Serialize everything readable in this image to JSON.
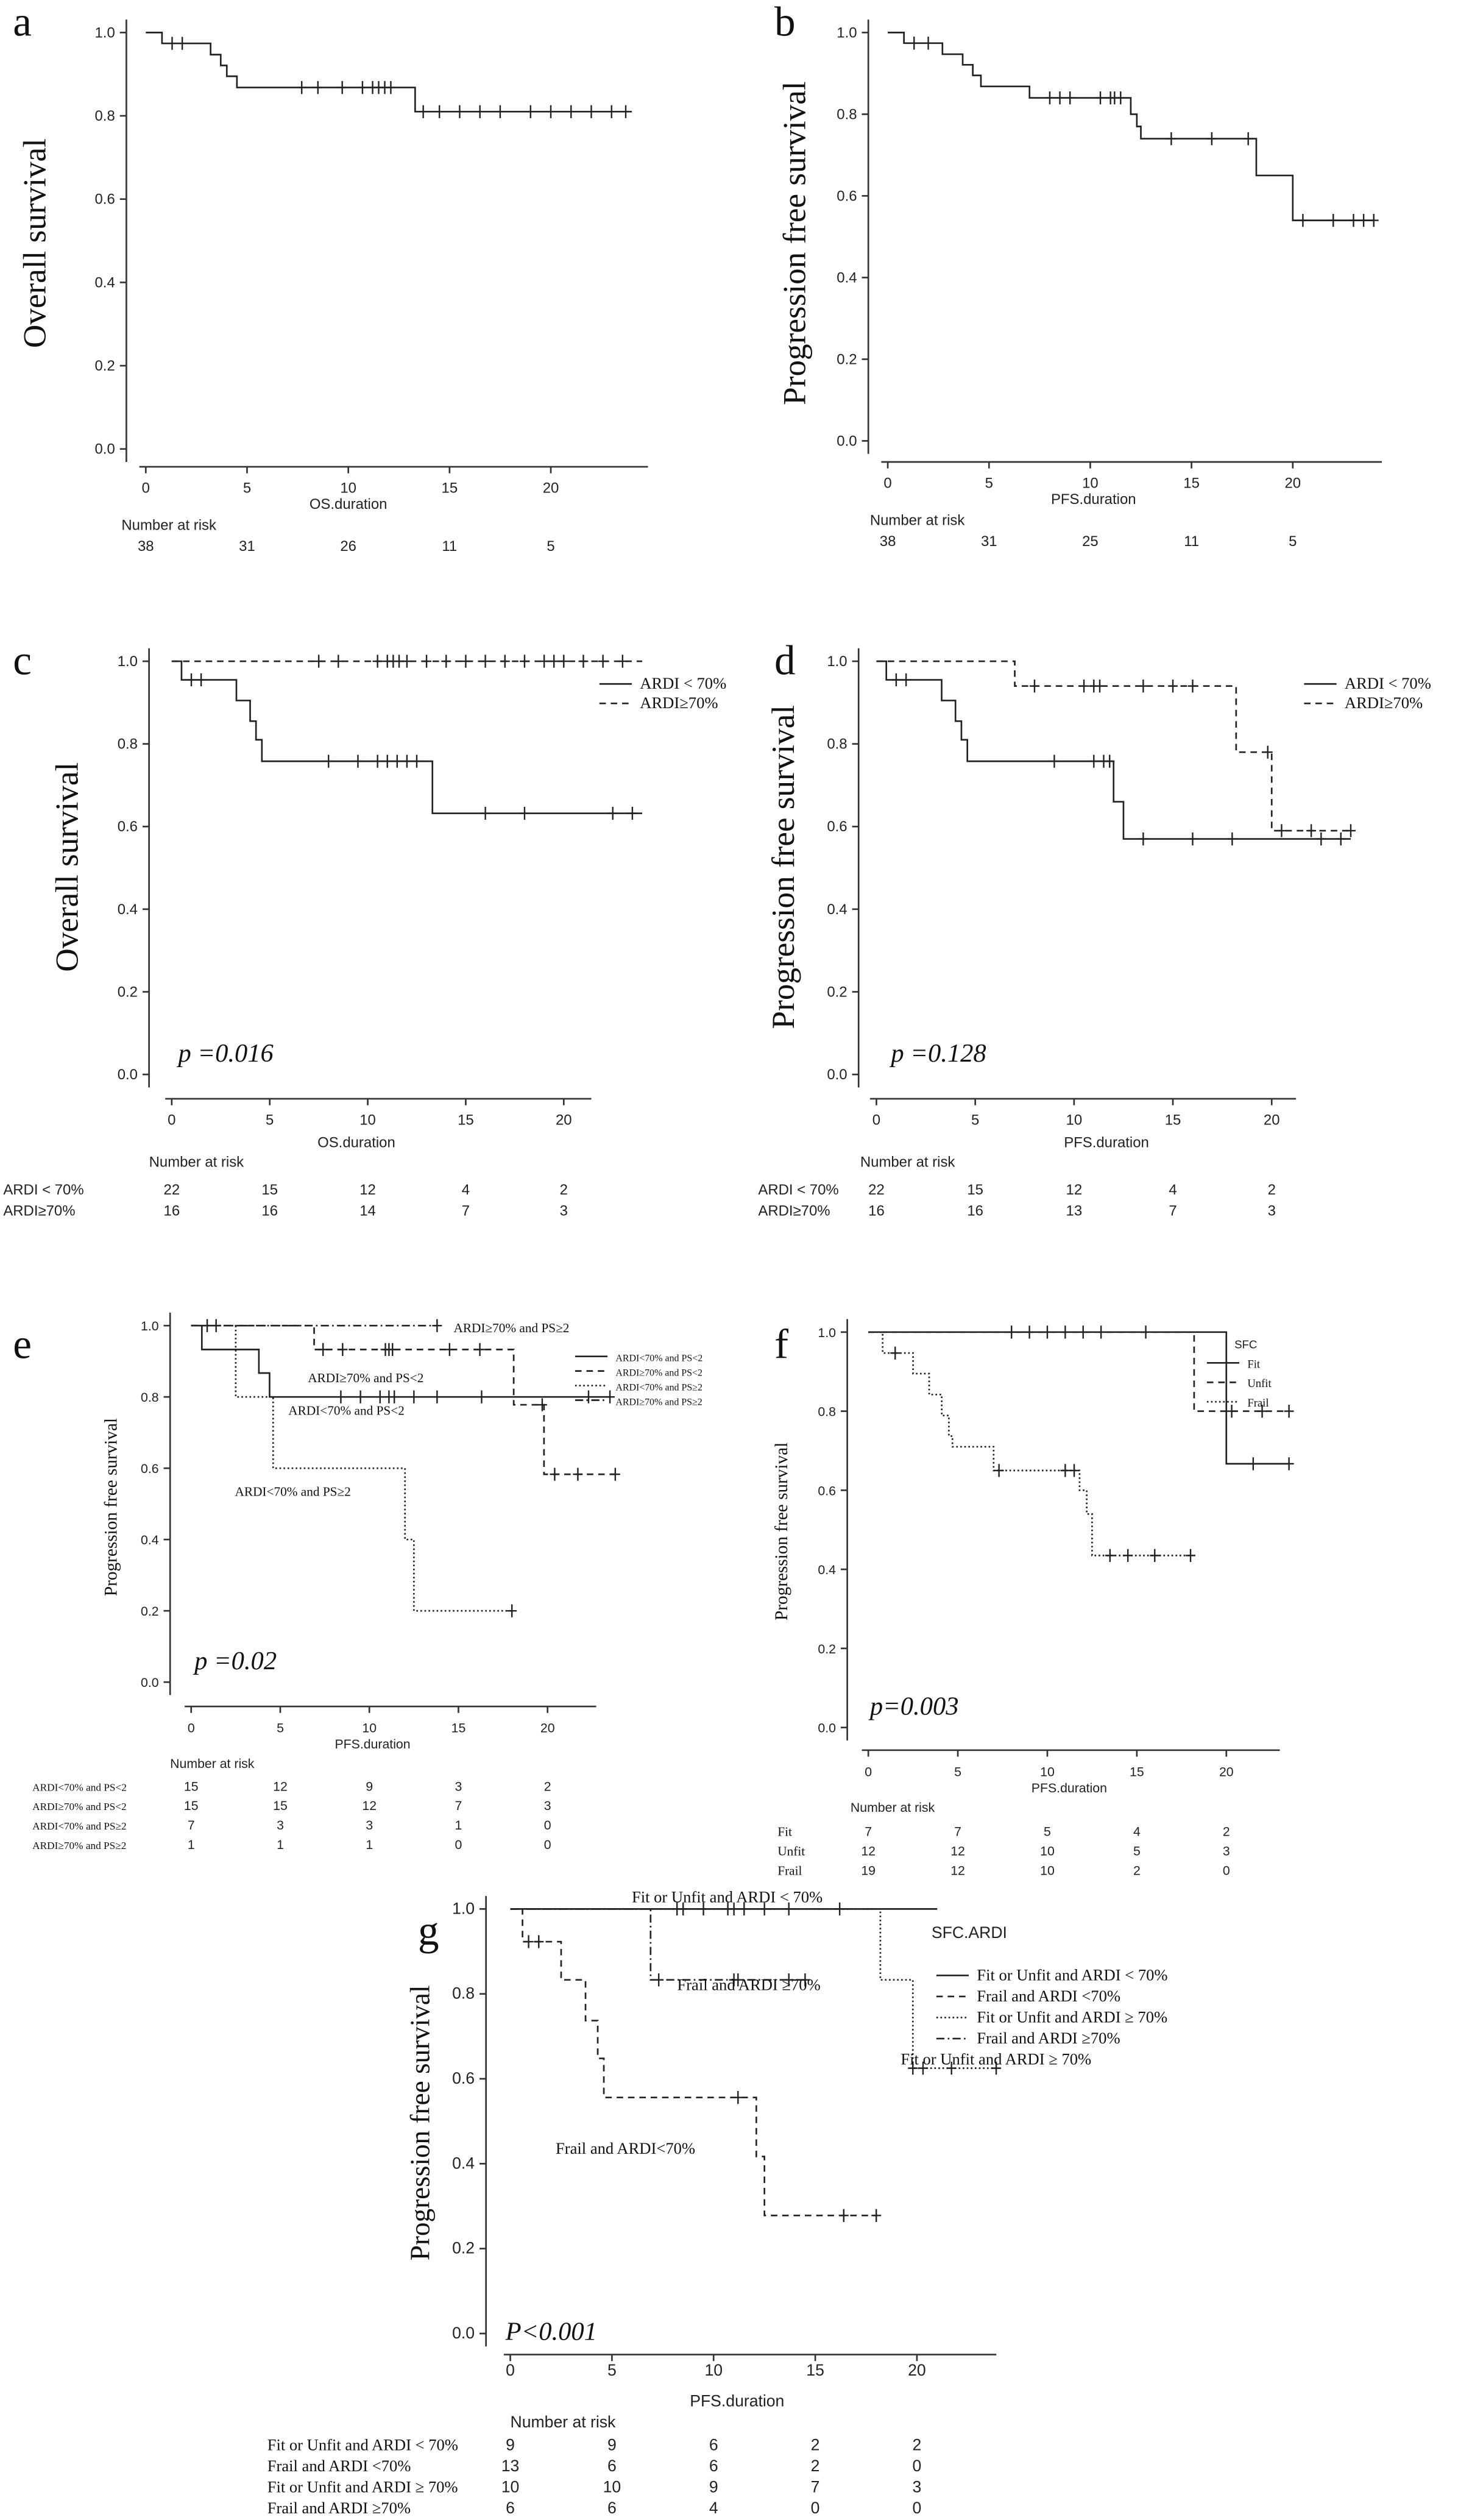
{
  "chart_data": [
    {
      "type": "line",
      "panel_letter": "a",
      "ylabel": "Overall survival",
      "xlabel": "OS.duration",
      "xticks": [
        0,
        5,
        10,
        15,
        20
      ],
      "yticks": [
        "0.0",
        "0.2",
        "0.4",
        "0.6",
        "0.8",
        "1.0"
      ],
      "ylim": [
        0,
        1
      ],
      "p_value": "",
      "legend_title": "",
      "series": [
        {
          "name": "",
          "style": "solid",
          "steps": [
            [
              0,
              1
            ],
            [
              0.8,
              0.974
            ],
            [
              3.2,
              0.947
            ],
            [
              3.7,
              0.921
            ],
            [
              4.0,
              0.895
            ],
            [
              4.5,
              0.868
            ],
            [
              13.3,
              0.81
            ]
          ],
          "end": 24,
          "censors": [
            1.3,
            1.8,
            7.7,
            8.5,
            9.7,
            10.7,
            11.2,
            11.5,
            11.8,
            12.1,
            13.7,
            14.5,
            15.5,
            16.5,
            17.5,
            19,
            20,
            21,
            22,
            23,
            23.7
          ]
        }
      ],
      "annotations": [],
      "risk_table": {
        "title": "Number at risk",
        "rows": [
          {
            "label": "",
            "values": [
              "38",
              "31",
              "26",
              "11",
              "5"
            ]
          }
        ]
      }
    },
    {
      "type": "line",
      "panel_letter": "b",
      "ylabel": "Progression free survival",
      "xlabel": "PFS.duration",
      "xticks": [
        0,
        5,
        10,
        15,
        20
      ],
      "yticks": [
        "0.0",
        "0.2",
        "0.4",
        "0.6",
        "0.8",
        "1.0"
      ],
      "ylim": [
        0,
        1
      ],
      "p_value": "",
      "legend_title": "",
      "series": [
        {
          "name": "",
          "style": "solid",
          "steps": [
            [
              0,
              1
            ],
            [
              0.8,
              0.974
            ],
            [
              2.7,
              0.947
            ],
            [
              3.7,
              0.921
            ],
            [
              4.2,
              0.895
            ],
            [
              4.6,
              0.868
            ],
            [
              7,
              0.84
            ],
            [
              12,
              0.8
            ],
            [
              12.3,
              0.77
            ],
            [
              12.5,
              0.74
            ],
            [
              18.2,
              0.65
            ],
            [
              20,
              0.54
            ]
          ],
          "end": 24,
          "censors": [
            1.3,
            2,
            8,
            8.5,
            9,
            10.5,
            11,
            11.2,
            11.5,
            14,
            16,
            17.8,
            20.5,
            22,
            23,
            23.5,
            24
          ]
        }
      ],
      "annotations": [],
      "risk_table": {
        "title": "Number at risk",
        "rows": [
          {
            "label": "",
            "values": [
              "38",
              "31",
              "25",
              "11",
              "5"
            ]
          }
        ]
      }
    },
    {
      "type": "line",
      "panel_letter": "c",
      "ylabel": "Overall survival",
      "xlabel": "OS.duration",
      "xticks": [
        0,
        5,
        10,
        15,
        20
      ],
      "yticks": [
        "0.0",
        "0.2",
        "0.4",
        "0.6",
        "0.8",
        "1.0"
      ],
      "ylim": [
        0,
        1
      ],
      "p_value": "p =0.016",
      "legend_title": "",
      "series": [
        {
          "name": "ARDI < 70%",
          "style": "solid",
          "steps": [
            [
              0,
              1
            ],
            [
              0.5,
              0.955
            ],
            [
              3.3,
              0.905
            ],
            [
              4,
              0.855
            ],
            [
              4.3,
              0.81
            ],
            [
              4.6,
              0.758
            ],
            [
              13.3,
              0.632
            ]
          ],
          "end": 24,
          "censors": [
            1,
            1.5,
            8,
            9.5,
            10.5,
            11,
            11.5,
            12,
            12.5,
            16,
            18,
            22.5,
            23.5
          ]
        },
        {
          "name": "ARDI≥70%",
          "style": "dashed",
          "steps": [
            [
              0,
              1
            ]
          ],
          "end": 24,
          "censors": [
            7.5,
            8.5,
            10.5,
            11,
            11.3,
            11.6,
            12,
            13,
            14,
            15,
            16,
            17,
            18,
            19,
            19.5,
            20,
            21,
            22,
            23
          ]
        }
      ],
      "annotations": [],
      "risk_table": {
        "title": "Number at risk",
        "rows": [
          {
            "label": "ARDI < 70%",
            "values": [
              "22",
              "15",
              "12",
              "4",
              "2"
            ]
          },
          {
            "label": "ARDI≥70%",
            "values": [
              "16",
              "16",
              "14",
              "7",
              "3"
            ]
          }
        ]
      }
    },
    {
      "type": "line",
      "panel_letter": "d",
      "ylabel": "Progression free survival",
      "xlabel": "PFS.duration",
      "xticks": [
        0,
        5,
        10,
        15,
        20
      ],
      "yticks": [
        "0.0",
        "0.2",
        "0.4",
        "0.6",
        "0.8",
        "1.0"
      ],
      "ylim": [
        0,
        1
      ],
      "p_value": "p =0.128",
      "legend_title": "",
      "series": [
        {
          "name": "ARDI < 70%",
          "style": "solid",
          "steps": [
            [
              0,
              1
            ],
            [
              0.5,
              0.955
            ],
            [
              3.3,
              0.905
            ],
            [
              4,
              0.855
            ],
            [
              4.3,
              0.81
            ],
            [
              4.6,
              0.758
            ],
            [
              12,
              0.66
            ],
            [
              12.5,
              0.57
            ]
          ],
          "end": 24,
          "censors": [
            1,
            1.5,
            9,
            11,
            11.5,
            11.8,
            13.5,
            16,
            18,
            22.5,
            23.5
          ]
        },
        {
          "name": "ARDI≥70%",
          "style": "dashed",
          "steps": [
            [
              0,
              1
            ],
            [
              7,
              0.94
            ],
            [
              18.2,
              0.78
            ],
            [
              20,
              0.59
            ]
          ],
          "end": 24,
          "censors": [
            8,
            10.5,
            11,
            11.3,
            13.5,
            15,
            16,
            19.8,
            20.5,
            22,
            24
          ]
        }
      ],
      "annotations": [],
      "risk_table": {
        "title": "Number at risk",
        "rows": [
          {
            "label": "ARDI < 70%",
            "values": [
              "22",
              "15",
              "12",
              "4",
              "2"
            ]
          },
          {
            "label": "ARDI≥70%",
            "values": [
              "16",
              "16",
              "13",
              "7",
              "3"
            ]
          }
        ]
      }
    },
    {
      "type": "line",
      "panel_letter": "e",
      "ylabel": "Progression free survival",
      "xlabel": "PFS.duration",
      "xticks": [
        0,
        5,
        10,
        15,
        20
      ],
      "yticks": [
        "0.0",
        "0.2",
        "0.4",
        "0.6",
        "0.8",
        "1.0"
      ],
      "ylim": [
        0,
        1
      ],
      "p_value": "p =0.02",
      "legend_title": "",
      "series": [
        {
          "name": "ARDI<70% and PS<2",
          "style": "solid",
          "steps": [
            [
              0,
              1
            ],
            [
              0.6,
              0.933
            ],
            [
              3.8,
              0.867
            ],
            [
              4.4,
              0.8
            ]
          ],
          "end": 23.5,
          "censors": [
            8.4,
            9.5,
            10.6,
            11.1,
            11.4,
            12.5,
            13.8,
            16.3,
            22.3,
            23.5
          ]
        },
        {
          "name": "ARDI≥70% and PS<2",
          "style": "dashed",
          "steps": [
            [
              0,
              1
            ],
            [
              6.9,
              0.933
            ],
            [
              18.1,
              0.778
            ],
            [
              19.8,
              0.583
            ]
          ],
          "end": 23.8,
          "censors": [
            7.4,
            8.5,
            10.9,
            11.1,
            11.3,
            14.5,
            16.2,
            19.7,
            20.4,
            21.7,
            23.8
          ]
        },
        {
          "name": "ARDI<70% and PS≥2",
          "style": "dotted",
          "steps": [
            [
              0,
              1
            ],
            [
              2.5,
              0.8
            ],
            [
              4.6,
              0.6
            ],
            [
              12,
              0.4
            ],
            [
              12.5,
              0.2
            ]
          ],
          "end": 18,
          "censors": [
            18
          ]
        },
        {
          "name": "ARDI≥70% and PS≥2",
          "style": "dashdot",
          "steps": [
            [
              0,
              1
            ]
          ],
          "end": 13.8,
          "censors": [
            0.9,
            1.4,
            13.8
          ]
        }
      ],
      "annotations": [
        "ARDI≥70% and PS≥2",
        "ARDI≥70% and PS<2",
        "ARDI<70% and PS<2",
        "ARDI<70% and PS≥2"
      ],
      "risk_table": {
        "title": "Number at risk",
        "rows": [
          {
            "label": "ARDI<70% and PS<2",
            "values": [
              "15",
              "12",
              "9",
              "3",
              "2"
            ]
          },
          {
            "label": "ARDI≥70% and PS<2",
            "values": [
              "15",
              "15",
              "12",
              "7",
              "3"
            ]
          },
          {
            "label": "ARDI<70% and PS≥2",
            "values": [
              "7",
              "3",
              "3",
              "1",
              "0"
            ]
          },
          {
            "label": "ARDI≥70% and PS≥2",
            "values": [
              "1",
              "1",
              "1",
              "0",
              "0"
            ]
          }
        ]
      }
    },
    {
      "type": "line",
      "panel_letter": "f",
      "ylabel": "Progression free survival",
      "xlabel": "PFS.duration",
      "xticks": [
        0,
        5,
        10,
        15,
        20
      ],
      "yticks": [
        "0.0",
        "0.2",
        "0.4",
        "0.6",
        "0.8",
        "1.0"
      ],
      "ylim": [
        0,
        1
      ],
      "p_value": "p=0.003",
      "legend_title": "SFC",
      "series": [
        {
          "name": "Fit",
          "style": "solid",
          "steps": [
            [
              0,
              1
            ],
            [
              20,
              0.667
            ]
          ],
          "end": 23.5,
          "censors": [
            21.5,
            23.5
          ]
        },
        {
          "name": "Unfit",
          "style": "dashed",
          "steps": [
            [
              0,
              1
            ],
            [
              18.2,
              0.8
            ]
          ],
          "end": 23.5,
          "censors": [
            8,
            9,
            10,
            11,
            12,
            13,
            15.5,
            20.3,
            22,
            23.5
          ]
        },
        {
          "name": "Frail",
          "style": "dotted",
          "steps": [
            [
              0,
              1
            ],
            [
              0.8,
              0.947
            ],
            [
              2.5,
              0.895
            ],
            [
              3.4,
              0.842
            ],
            [
              4.1,
              0.789
            ],
            [
              4.5,
              0.737
            ],
            [
              4.7,
              0.71
            ],
            [
              7,
              0.65
            ],
            [
              11.8,
              0.6
            ],
            [
              12.2,
              0.54
            ],
            [
              12.5,
              0.435
            ]
          ],
          "end": 18,
          "censors": [
            1.5,
            7.3,
            11,
            11.5,
            13.5,
            14.5,
            16,
            18
          ]
        }
      ],
      "annotations": [],
      "risk_table": {
        "title": "Number at risk",
        "rows": [
          {
            "label": "Fit",
            "values": [
              "7",
              "7",
              "5",
              "4",
              "2"
            ]
          },
          {
            "label": "Unfit",
            "values": [
              "12",
              "12",
              "10",
              "5",
              "3"
            ]
          },
          {
            "label": "Frail",
            "values": [
              "19",
              "12",
              "10",
              "2",
              "0"
            ]
          }
        ]
      }
    },
    {
      "type": "line",
      "panel_letter": "g",
      "ylabel": "Progression free survival",
      "xlabel": "PFS.duration",
      "xticks": [
        0,
        5,
        10,
        15,
        20
      ],
      "yticks": [
        "0.0",
        "0.2",
        "0.4",
        "0.6",
        "0.8",
        "1.0"
      ],
      "ylim": [
        0,
        1
      ],
      "p_value": "P<0.001",
      "legend_title": "SFC.ARDI",
      "series": [
        {
          "name": "Fit or Unfit and ARDI < 70%",
          "style": "solid",
          "steps": [
            [
              0,
              1
            ]
          ],
          "end": 21,
          "censors": [
            8.2,
            8.5,
            9.5,
            10.7,
            11,
            11.5,
            12.5,
            13.7,
            16.2
          ]
        },
        {
          "name": "Frail and ARDI <70%",
          "style": "dashed",
          "steps": [
            [
              0,
              1
            ],
            [
              0.6,
              0.923
            ],
            [
              2.5,
              0.833
            ],
            [
              3.7,
              0.737
            ],
            [
              4.3,
              0.648
            ],
            [
              4.6,
              0.556
            ],
            [
              12.1,
              0.417
            ],
            [
              12.5,
              0.278
            ]
          ],
          "end": 18,
          "censors": [
            0.9,
            1.4,
            11.2,
            16.4,
            18
          ]
        },
        {
          "name": "Fit or Unfit and ARDI ≥ 70%",
          "style": "dotted",
          "steps": [
            [
              0,
              1
            ],
            [
              18.2,
              0.833
            ],
            [
              19.8,
              0.625
            ]
          ],
          "end": 23.9,
          "censors": [
            19.8,
            20.3,
            21.7,
            23.9
          ]
        },
        {
          "name": "Frail and ARDI ≥70%",
          "style": "dashdot",
          "steps": [
            [
              0,
              1
            ],
            [
              6.9,
              0.833
            ]
          ],
          "end": 14.5,
          "censors": [
            7.3,
            11,
            11.2,
            13.7,
            14.5
          ]
        }
      ],
      "annotations": [
        "Fit or Unfit and ARDI < 70%",
        "Frail and ARDI ≥70%",
        "Fit or Unfit and ARDI ≥ 70%",
        "Frail and ARDI<70%"
      ],
      "risk_table": {
        "title": "Number at risk",
        "rows": [
          {
            "label": "Fit or Unfit and ARDI < 70%",
            "values": [
              "9",
              "9",
              "6",
              "2",
              "2"
            ]
          },
          {
            "label": "Frail and ARDI <70%",
            "values": [
              "13",
              "6",
              "6",
              "2",
              "0"
            ]
          },
          {
            "label": "Fit or Unfit and ARDI ≥ 70%",
            "values": [
              "10",
              "10",
              "9",
              "7",
              "3"
            ]
          },
          {
            "label": "Frail and ARDI ≥70%",
            "values": [
              "6",
              "6",
              "4",
              "0",
              "0"
            ]
          }
        ]
      }
    }
  ]
}
